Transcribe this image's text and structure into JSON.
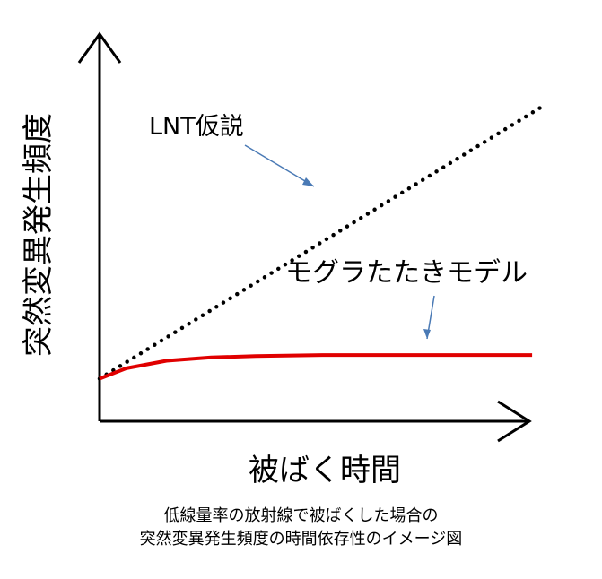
{
  "chart_data": {
    "type": "line",
    "xlabel": "被ばく時間",
    "ylabel": "突然変異発生頻度",
    "series": [
      {
        "name": "LNT仮説",
        "style": "dotted",
        "color": "#000000",
        "x": [
          0,
          10
        ],
        "y": [
          0.9,
          6.7
        ]
      },
      {
        "name": "モグラたたきモデル",
        "style": "solid",
        "color": "#e00000",
        "x": [
          0,
          0.6,
          1.5,
          2.5,
          3.5,
          5,
          6.5,
          8,
          9.7
        ],
        "y": [
          0.9,
          1.12,
          1.28,
          1.35,
          1.38,
          1.4,
          1.4,
          1.4,
          1.4
        ]
      }
    ],
    "xlim": [
      0,
      10
    ],
    "ylim": [
      0,
      8
    ],
    "grid": false,
    "legend": "inline-annotations"
  },
  "caption": {
    "line1": "低線量率の放射線で被ばくした場合の",
    "line2": "突然変異発生頻度の時間依存性のイメージ図"
  },
  "colors": {
    "axis": "#000000",
    "lnt": "#000000",
    "model": "#e00000",
    "pointer": "#4a7ab5"
  }
}
